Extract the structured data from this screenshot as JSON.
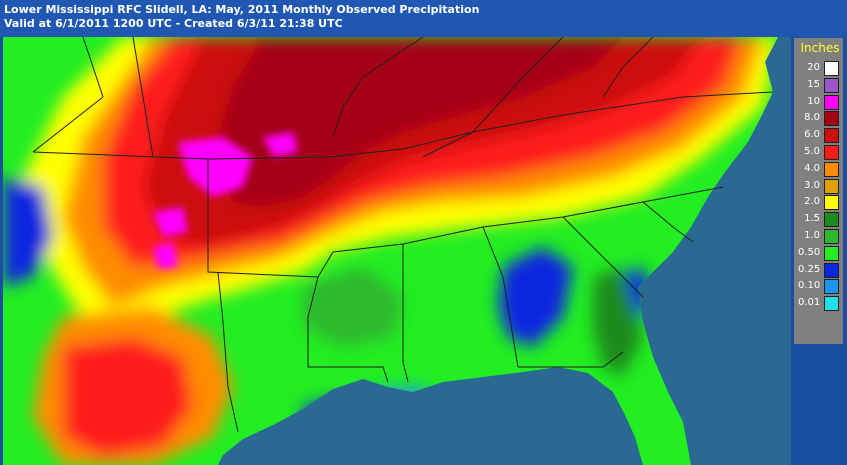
{
  "header": {
    "title": "Lower Mississippi RFC Slidell, LA: May, 2011 Monthly Observed Precipitation",
    "subtitle": "Valid at 6/1/2011 1200 UTC - Created 6/3/11 21:38 UTC"
  },
  "legend": {
    "title": "Inches",
    "items": [
      {
        "label": "20",
        "color": "#ffffff"
      },
      {
        "label": "15",
        "color": "#9a55c8"
      },
      {
        "label": "10",
        "color": "#ff00ff"
      },
      {
        "label": "8.0",
        "color": "#a50012"
      },
      {
        "label": "6.0",
        "color": "#cc1010"
      },
      {
        "label": "5.0",
        "color": "#ff1a1a"
      },
      {
        "label": "4.0",
        "color": "#ff8c00"
      },
      {
        "label": "3.0",
        "color": "#e0a000"
      },
      {
        "label": "2.0",
        "color": "#ffff00"
      },
      {
        "label": "1.5",
        "color": "#1f8a1f"
      },
      {
        "label": "1.0",
        "color": "#2db82d"
      },
      {
        "label": "0.50",
        "color": "#22ee22"
      },
      {
        "label": "0.25",
        "color": "#0a28e0"
      },
      {
        "label": "0.10",
        "color": "#1a96f0"
      },
      {
        "label": "0.01",
        "color": "#22e0e8"
      }
    ]
  },
  "map": {
    "colors": {
      "ocean": "#2a6a92",
      "border": "#202020"
    }
  }
}
